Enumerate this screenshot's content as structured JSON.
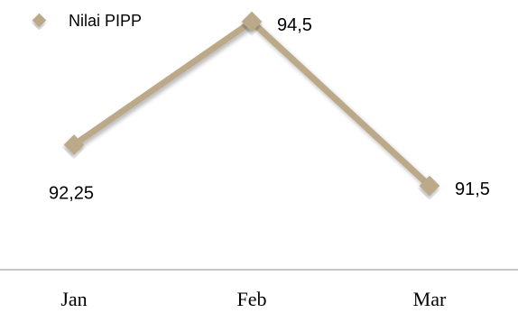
{
  "chart_data": {
    "type": "line",
    "categories": [
      "Jan",
      "Feb",
      "Mar"
    ],
    "series": [
      {
        "name": "Nilai PIPP",
        "values": [
          92.25,
          94.5,
          91.5
        ],
        "labels": [
          "92,25",
          "94,5",
          "91,5"
        ],
        "color": "#bba98a",
        "marker": "diamond"
      }
    ],
    "legend": "top-left",
    "grid": false
  }
}
